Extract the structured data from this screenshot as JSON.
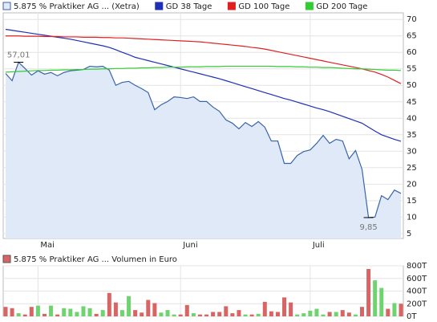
{
  "chart_data": [
    {
      "type": "line",
      "categories": [
        null,
        null,
        null,
        null,
        null,
        "Mai",
        null,
        null,
        null,
        null,
        null,
        null,
        null,
        null,
        null,
        null,
        null,
        null,
        null,
        null,
        null,
        null,
        null,
        null,
        null,
        null,
        null,
        "Juni",
        null,
        null,
        null,
        null,
        null,
        null,
        null,
        null,
        null,
        null,
        null,
        null,
        null,
        null,
        null,
        null,
        null,
        null,
        null,
        "Juli",
        null,
        null,
        null,
        null,
        null,
        null,
        null,
        null,
        null,
        null,
        null,
        null,
        null,
        null
      ],
      "series": [
        {
          "name": "5.875 % Praktiker AG ... (Xetra)",
          "color": "#3a64a8",
          "fill": "#dfe9f8",
          "area": true,
          "values": [
            53.6,
            51.4,
            57.01,
            55.1,
            53.1,
            54.4,
            53.4,
            53.9,
            52.9,
            53.9,
            54.4,
            54.6,
            54.8,
            55.8,
            55.6,
            55.8,
            54.6,
            50.0,
            50.9,
            51.2,
            50.0,
            49.0,
            47.8,
            42.6,
            44.1,
            45.1,
            46.5,
            46.3,
            46.0,
            46.5,
            45.1,
            45.1,
            43.4,
            42.1,
            39.5,
            38.5,
            36.8,
            38.7,
            37.5,
            39.0,
            37.3,
            33.1,
            33.1,
            26.3,
            26.3,
            28.7,
            29.9,
            30.4,
            32.4,
            34.8,
            32.4,
            33.6,
            33.1,
            27.7,
            30.2,
            24.5,
            9.85,
            10.0,
            16.5,
            15.3,
            18.2,
            17.2
          ],
          "value_labels": [
            null,
            null,
            "57,01",
            null,
            null,
            null,
            null,
            null,
            null,
            null,
            null,
            null,
            null,
            null,
            null,
            null,
            null,
            null,
            null,
            null,
            null,
            null,
            null,
            null,
            null,
            null,
            null,
            null,
            null,
            null,
            null,
            null,
            null,
            null,
            null,
            null,
            null,
            null,
            null,
            null,
            null,
            null,
            null,
            null,
            null,
            null,
            null,
            null,
            null,
            null,
            null,
            null,
            null,
            null,
            null,
            null,
            "9,85",
            null,
            null,
            null,
            null,
            null
          ]
        },
        {
          "name": "GD 38 Tage",
          "color": "#1f2fb8",
          "values": [
            67,
            66.7,
            66.4,
            66.1,
            65.8,
            65.5,
            65.2,
            64.9,
            64.6,
            64.3,
            64,
            63.6,
            63.2,
            62.8,
            62.4,
            62,
            61.5,
            60.8,
            60,
            59.3,
            58.5,
            58,
            57.5,
            57,
            56.5,
            56,
            55.5,
            55,
            54.5,
            54,
            53.5,
            53,
            52.5,
            52,
            51.4,
            50.8,
            50.2,
            49.6,
            49,
            48.4,
            47.8,
            47.2,
            46.6,
            46,
            45.5,
            44.9,
            44.3,
            43.7,
            43.1,
            42.6,
            42,
            41.3,
            40.6,
            39.9,
            39.2,
            38.5,
            37.3,
            36.1,
            35,
            34.3,
            33.6,
            33
          ]
        },
        {
          "name": "GD 100 Tage",
          "color": "#e02020",
          "values": [
            65,
            65,
            65,
            64.9,
            64.9,
            64.9,
            64.8,
            64.8,
            64.8,
            64.7,
            64.7,
            64.7,
            64.6,
            64.6,
            64.6,
            64.5,
            64.5,
            64.4,
            64.4,
            64.3,
            64.2,
            64.1,
            64,
            63.9,
            63.8,
            63.7,
            63.6,
            63.5,
            63.4,
            63.3,
            63.2,
            63,
            62.8,
            62.6,
            62.4,
            62.2,
            62,
            61.8,
            61.5,
            61.3,
            61,
            60.6,
            60.2,
            59.8,
            59.4,
            59,
            58.6,
            58.2,
            57.8,
            57.4,
            57,
            56.6,
            56.2,
            55.8,
            55.4,
            55,
            54.5,
            54,
            53.3,
            52.5,
            51.5,
            50.5
          ]
        },
        {
          "name": "GD 200 Tage",
          "color": "#33cc33",
          "values": [
            54,
            54.1,
            54.2,
            54.3,
            54.4,
            54.5,
            54.5,
            54.6,
            54.6,
            54.7,
            54.7,
            54.8,
            54.8,
            54.9,
            54.9,
            55,
            55,
            55.1,
            55.1,
            55.2,
            55.2,
            55.3,
            55.3,
            55.4,
            55.4,
            55.5,
            55.5,
            55.5,
            55.6,
            55.6,
            55.6,
            55.7,
            55.7,
            55.7,
            55.8,
            55.8,
            55.8,
            55.8,
            55.8,
            55.8,
            55.8,
            55.8,
            55.7,
            55.7,
            55.7,
            55.6,
            55.6,
            55.5,
            55.5,
            55.4,
            55.4,
            55.3,
            55.2,
            55.1,
            55,
            55,
            54.9,
            54.8,
            54.7,
            54.6,
            54.6,
            54.5
          ]
        }
      ],
      "ylim": [
        3.5,
        72
      ],
      "yticks": [
        5,
        10,
        15,
        20,
        25,
        30,
        35,
        40,
        45,
        50,
        55,
        60,
        65,
        70
      ],
      "grid": true
    },
    {
      "type": "bar",
      "series": [
        {
          "name": "5.875 % Praktiker AG ... Volumen in Euro",
          "color": "#d96464",
          "up_color": "#6fd46f",
          "values": [
            150,
            130,
            50,
            30,
            150,
            170,
            40,
            170,
            30,
            130,
            120,
            70,
            160,
            130,
            40,
            100,
            370,
            220,
            100,
            320,
            100,
            60,
            260,
            210,
            60,
            100,
            30,
            30,
            180,
            50,
            30,
            30,
            70,
            70,
            160,
            50,
            100,
            30,
            30,
            40,
            230,
            80,
            70,
            300,
            220,
            30,
            50,
            90,
            120,
            30,
            70,
            70,
            100,
            60,
            30,
            150,
            750,
            570,
            450,
            120,
            210,
            200
          ]
        }
      ],
      "ylim": [
        0,
        800
      ],
      "yticks": [
        {
          "value": 0,
          "label": "0T"
        },
        {
          "value": 200,
          "label": "200T"
        },
        {
          "value": 400,
          "label": "400T"
        },
        {
          "value": 600,
          "label": "600T"
        },
        {
          "value": 800,
          "label": "800T"
        }
      ],
      "grid": true
    }
  ]
}
